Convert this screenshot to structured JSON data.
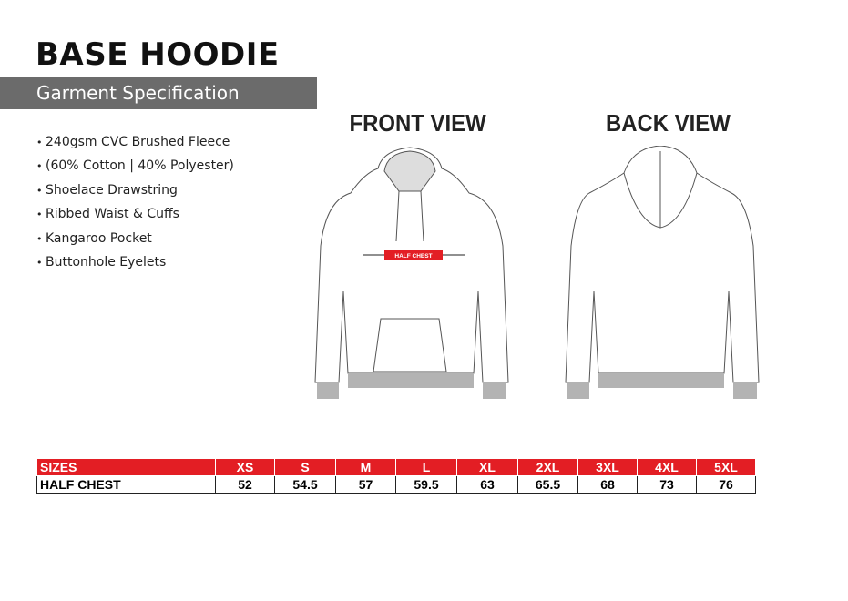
{
  "title": "BASE HOODIE",
  "subtitle": "Garment Specification",
  "specs": [
    "240gsm CVC Brushed Fleece",
    "(60% Cotton | 40% Polyester)",
    "Shoelace Drawstring",
    "Ribbed Waist & Cuffs",
    "Kangaroo Pocket",
    "Buttonhole Eyelets"
  ],
  "views": {
    "front": "FRONT VIEW",
    "back": "BACK VIEW",
    "measure_label": "HALF CHEST"
  },
  "colors": {
    "accent": "#e31e24",
    "header_bar": "#6b6b6b",
    "rib": "#b3b3b3"
  },
  "table": {
    "header_label": "SIZES",
    "sizes": [
      "XS",
      "S",
      "M",
      "L",
      "XL",
      "2XL",
      "3XL",
      "4XL",
      "5XL"
    ],
    "row_label": "HALF CHEST",
    "values": [
      "52",
      "54.5",
      "57",
      "59.5",
      "63",
      "65.5",
      "68",
      "73",
      "76"
    ]
  }
}
